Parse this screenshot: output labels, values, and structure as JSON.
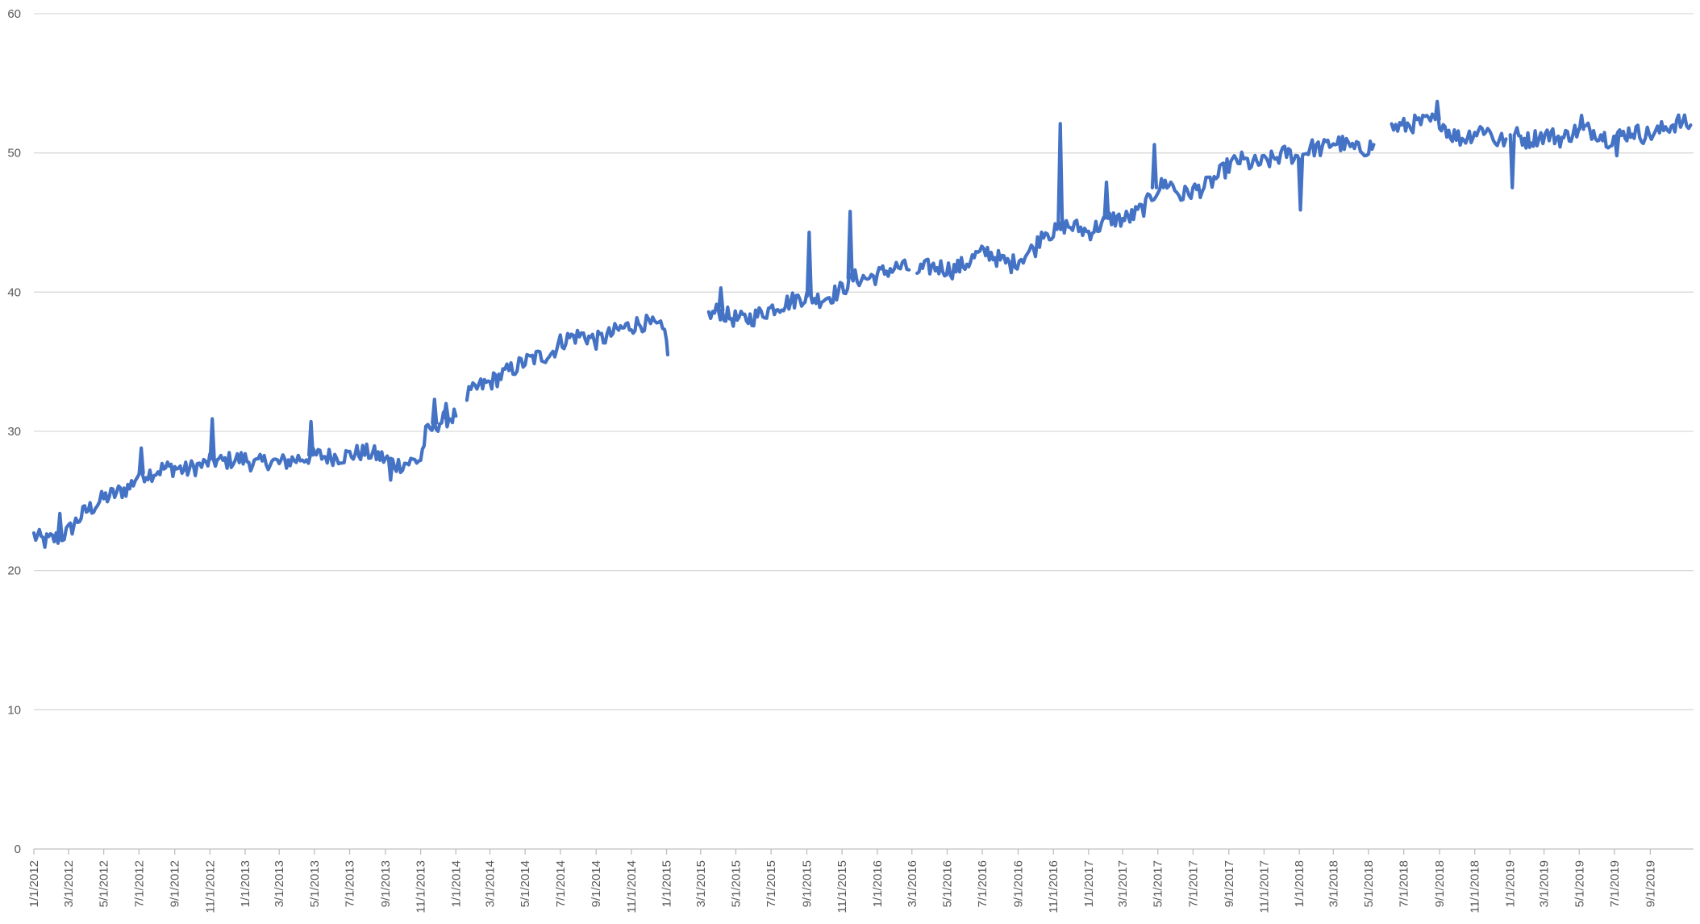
{
  "chart_data": {
    "type": "line",
    "title": "",
    "xlabel": "",
    "ylabel": "",
    "ylim": [
      0,
      60
    ],
    "y_ticks": [
      "0",
      "10",
      "20",
      "30",
      "40",
      "50",
      "60"
    ],
    "grid": "horizontal",
    "legend": "none",
    "x_ticks": [
      "1/1/2012",
      "3/1/2012",
      "5/1/2012",
      "7/1/2012",
      "9/1/2012",
      "11/1/2012",
      "1/1/2013",
      "3/1/2013",
      "5/1/2013",
      "7/1/2013",
      "9/1/2013",
      "11/1/2013",
      "1/1/2014",
      "3/1/2014",
      "5/1/2014",
      "7/1/2014",
      "9/1/2014",
      "11/1/2014",
      "1/1/2015",
      "3/1/2015",
      "5/1/2015",
      "7/1/2015",
      "9/1/2015",
      "11/1/2015",
      "1/1/2016",
      "3/1/2016",
      "5/1/2016",
      "7/1/2016",
      "9/1/2016",
      "11/1/2016",
      "1/1/2017",
      "3/1/2017",
      "5/1/2017",
      "7/1/2017",
      "9/1/2017",
      "11/1/2017",
      "1/1/2018",
      "3/1/2018",
      "5/1/2018",
      "7/1/2018",
      "9/1/2018",
      "11/1/2018",
      "1/1/2019",
      "3/1/2019",
      "5/1/2019",
      "7/1/2019",
      "9/1/2019"
    ],
    "xlim": [
      "1/1/2012",
      "11/15/2019"
    ],
    "series": [
      {
        "color": "#4472c4",
        "segments": [
          [
            [
              "1/1/2012",
              22.5
            ],
            [
              "1/20/2012",
              22.1
            ],
            [
              "2/15/2012",
              22.4
            ],
            [
              "3/1/2012",
              22.8
            ],
            [
              "3/20/2012",
              23.8
            ],
            [
              "4/1/2012",
              24.3
            ],
            [
              "4/20/2012",
              24.8
            ],
            [
              "5/1/2012",
              25.2
            ],
            [
              "5/20/2012",
              25.5
            ],
            [
              "6/15/2012",
              26.0
            ],
            [
              "7/1/2012",
              27.0
            ],
            [
              "7/20/2012",
              27.0
            ],
            [
              "8/10/2012",
              27.3
            ],
            [
              "9/1/2012",
              27.4
            ],
            [
              "9/20/2012",
              27.2
            ],
            [
              "10/10/2012",
              27.5
            ],
            [
              "10/25/2012",
              27.6
            ],
            [
              "11/1/2012",
              28.0
            ],
            [
              "11/20/2012",
              27.8
            ],
            [
              "12/15/2012",
              28.0
            ],
            [
              "1/1/2013",
              28.0
            ],
            [
              "1/20/2013",
              27.6
            ],
            [
              "2/10/2013",
              27.9
            ],
            [
              "3/1/2013",
              27.7
            ],
            [
              "3/20/2013",
              27.9
            ],
            [
              "4/10/2013",
              28.1
            ],
            [
              "5/1/2013",
              28.3
            ],
            [
              "5/20/2013",
              28.2
            ],
            [
              "6/15/2013",
              28.2
            ],
            [
              "7/1/2013",
              28.3
            ],
            [
              "7/20/2013",
              28.5
            ],
            [
              "8/10/2013",
              28.4
            ],
            [
              "9/1/2013",
              28.0
            ],
            [
              "9/20/2013",
              27.6
            ],
            [
              "10/15/2013",
              27.8
            ],
            [
              "11/1/2013",
              28.0
            ],
            [
              "11/10/2013",
              29.8
            ],
            [
              "12/1/2013",
              30.6
            ],
            [
              "12/20/2013",
              31.0
            ],
            [
              "1/1/2014",
              31.1
            ]
          ],
          [
            [
              "1/20/2014",
              32.5
            ],
            [
              "2/10/2014",
              33.2
            ],
            [
              "3/1/2014",
              33.5
            ],
            [
              "3/20/2014",
              34.0
            ],
            [
              "4/10/2014",
              34.5
            ],
            [
              "5/1/2014",
              35.0
            ],
            [
              "5/20/2014",
              35.3
            ],
            [
              "6/15/2014",
              35.6
            ],
            [
              "7/1/2014",
              36.4
            ],
            [
              "7/20/2014",
              36.8
            ],
            [
              "8/10/2014",
              36.9
            ],
            [
              "9/1/2014",
              36.5
            ],
            [
              "9/20/2014",
              36.8
            ],
            [
              "10/10/2014",
              37.3
            ],
            [
              "11/1/2014",
              37.6
            ],
            [
              "11/20/2014",
              37.8
            ],
            [
              "12/15/2014",
              37.5
            ],
            [
              "1/1/2015",
              37.0
            ],
            [
              "1/3/2015",
              35.5
            ]
          ],
          [
            [
              "3/15/2015",
              38.2
            ],
            [
              "4/1/2015",
              38.7
            ],
            [
              "4/20/2015",
              38.2
            ],
            [
              "5/10/2015",
              38.0
            ],
            [
              "6/1/2015",
              38.2
            ],
            [
              "6/20/2015",
              38.6
            ],
            [
              "7/10/2015",
              39.0
            ],
            [
              "8/1/2015",
              39.3
            ],
            [
              "8/20/2015",
              39.6
            ],
            [
              "9/1/2015",
              39.7
            ],
            [
              "9/20/2015",
              39.5
            ],
            [
              "10/10/2015",
              39.7
            ],
            [
              "11/1/2015",
              40.2
            ],
            [
              "11/20/2015",
              41.0
            ],
            [
              "12/15/2015",
              41.0
            ],
            [
              "1/1/2016",
              41.2
            ],
            [
              "1/20/2016",
              41.6
            ],
            [
              "2/10/2016",
              41.8
            ],
            [
              "2/25/2016",
              41.6
            ]
          ],
          [
            [
              "3/10/2016",
              41.5
            ],
            [
              "4/1/2016",
              41.8
            ],
            [
              "4/20/2016",
              41.8
            ],
            [
              "5/10/2016",
              41.6
            ],
            [
              "6/1/2016",
              42.0
            ],
            [
              "6/20/2016",
              42.6
            ],
            [
              "7/10/2016",
              42.9
            ],
            [
              "8/1/2016",
              42.3
            ],
            [
              "8/20/2016",
              42.0
            ],
            [
              "9/10/2016",
              42.6
            ],
            [
              "10/1/2016",
              43.2
            ],
            [
              "10/15/2016",
              44.5
            ],
            [
              "11/1/2016",
              44.2
            ],
            [
              "11/20/2016",
              44.8
            ],
            [
              "12/15/2016",
              44.6
            ],
            [
              "1/1/2017",
              44.3
            ],
            [
              "1/20/2017",
              44.8
            ],
            [
              "2/10/2017",
              45.3
            ],
            [
              "3/1/2017",
              45.2
            ],
            [
              "3/20/2017",
              45.5
            ],
            [
              "4/10/2017",
              46.2
            ],
            [
              "5/1/2017",
              47.5
            ],
            [
              "5/20/2017",
              47.9
            ],
            [
              "6/10/2017",
              46.9
            ],
            [
              "7/1/2017",
              47.3
            ],
            [
              "7/20/2017",
              47.5
            ],
            [
              "8/10/2017",
              48.2
            ],
            [
              "9/1/2017",
              49.1
            ],
            [
              "9/20/2017",
              49.5
            ],
            [
              "10/10/2017",
              49.2
            ],
            [
              "11/1/2017",
              49.3
            ],
            [
              "11/20/2017",
              49.6
            ],
            [
              "12/10/2017",
              50.0
            ],
            [
              "1/1/2018",
              49.6
            ],
            [
              "1/20/2018",
              50.4
            ],
            [
              "2/10/2018",
              50.3
            ],
            [
              "3/1/2018",
              50.8
            ],
            [
              "3/20/2018",
              50.6
            ],
            [
              "4/10/2018",
              50.2
            ],
            [
              "5/1/2018",
              50.4
            ],
            [
              "5/10/2018",
              50.6
            ]
          ],
          [
            [
              "6/10/2018",
              51.8
            ],
            [
              "7/1/2018",
              51.9
            ],
            [
              "7/20/2018",
              52.1
            ],
            [
              "8/10/2018",
              52.2
            ],
            [
              "9/1/2018",
              52.4
            ],
            [
              "9/20/2018",
              51.4
            ],
            [
              "10/10/2018",
              51.0
            ],
            [
              "11/1/2018",
              51.5
            ],
            [
              "11/20/2018",
              51.8
            ],
            [
              "12/10/2018",
              50.8
            ],
            [
              "12/25/2018",
              51.0
            ]
          ],
          [
            [
              "1/10/2019",
              51.3
            ],
            [
              "2/1/2019",
              50.9
            ],
            [
              "2/20/2019",
              51.2
            ],
            [
              "3/10/2019",
              51.3
            ],
            [
              "4/1/2019",
              51.0
            ],
            [
              "4/20/2019",
              51.5
            ],
            [
              "5/10/2019",
              51.7
            ],
            [
              "6/1/2019",
              51.5
            ],
            [
              "6/20/2019",
              51.0
            ],
            [
              "7/10/2019",
              51.2
            ],
            [
              "8/1/2019",
              51.6
            ],
            [
              "8/20/2019",
              51.3
            ],
            [
              "9/10/2019",
              51.4
            ],
            [
              "10/1/2019",
              51.9
            ],
            [
              "10/20/2019",
              52.2
            ],
            [
              "11/10/2019",
              52.0
            ]
          ]
        ],
        "spikes": [
          [
            "2/15/2012",
            24.1
          ],
          [
            "7/5/2012",
            28.8
          ],
          [
            "11/5/2012",
            30.9
          ],
          [
            "4/25/2013",
            30.7
          ],
          [
            "9/10/2013",
            26.5
          ],
          [
            "11/25/2013",
            32.3
          ],
          [
            "12/15/2013",
            32.0
          ],
          [
            "4/5/2015",
            40.3
          ],
          [
            "9/5/2015",
            44.3
          ],
          [
            "11/15/2015",
            45.8
          ],
          [
            "11/13/2016",
            52.1
          ],
          [
            "2/1/2017",
            47.9
          ],
          [
            "4/25/2017",
            50.6
          ],
          [
            "1/3/2018",
            45.9
          ],
          [
            "8/28/2018",
            53.7
          ],
          [
            "1/5/2019",
            47.5
          ],
          [
            "5/5/2019",
            52.7
          ],
          [
            "7/5/2019",
            49.8
          ]
        ]
      }
    ]
  }
}
